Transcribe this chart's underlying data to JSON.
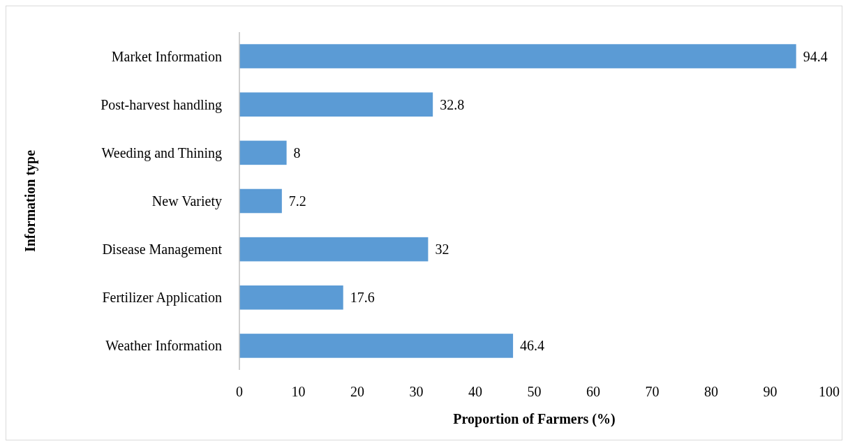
{
  "chart_data": {
    "type": "bar",
    "orientation": "horizontal",
    "xlabel": "Proportion of Farmers (%)",
    "ylabel": "Information type",
    "categories": [
      "Market Information",
      "Post-harvest handling",
      "Weeding and Thining",
      "New Variety",
      "Disease Management",
      "Fertilizer Application",
      "Weather Information"
    ],
    "values": [
      94.4,
      32.8,
      8,
      7.2,
      32,
      17.6,
      46.4
    ],
    "color": "#5b9bd5",
    "xlim": [
      0,
      100
    ],
    "xticks": [
      0,
      10,
      20,
      30,
      40,
      50,
      60,
      70,
      80,
      90,
      100
    ],
    "data_labels": true,
    "grid": false
  }
}
